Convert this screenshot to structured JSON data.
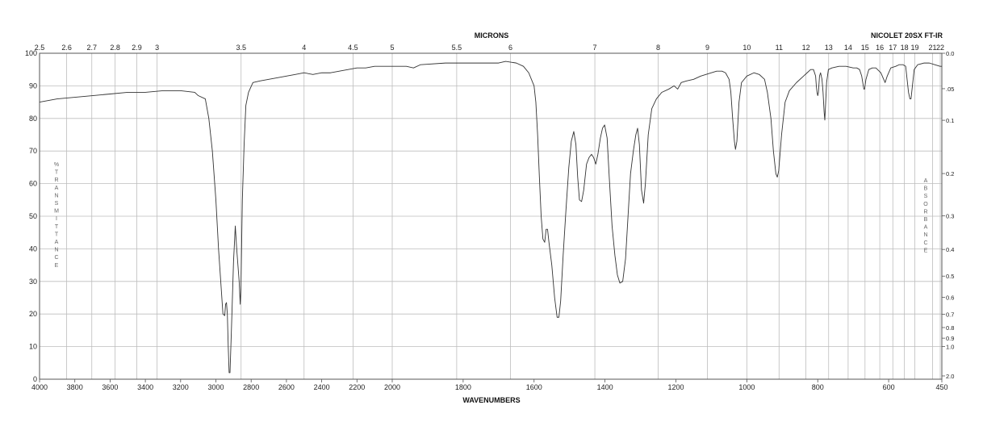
{
  "chart_data": {
    "type": "line",
    "top_axis_title": "MICRONS",
    "bottom_axis_title": "WAVENUMBERS",
    "instrument": "NICOLET 20SX FT-IR",
    "left_axis_title": "% TRANSMITTANCE",
    "left_axis_letters": [
      "%",
      "T",
      "R",
      "A",
      "N",
      "S",
      "M",
      "I",
      "T",
      "T",
      "A",
      "N",
      "C",
      "E"
    ],
    "right_axis_title": "ABSORBANCE",
    "right_axis_letters": [
      "A",
      "B",
      "S",
      "O",
      "R",
      "B",
      "A",
      "N",
      "C",
      "E"
    ],
    "x_range": [
      4000,
      450
    ],
    "y_range": [
      0,
      100
    ],
    "grid": true,
    "bottom_ticks": [
      {
        "v": 4000,
        "label": "4000"
      },
      {
        "v": 3800,
        "label": "3800"
      },
      {
        "v": 3600,
        "label": "3600"
      },
      {
        "v": 3400,
        "label": "3400"
      },
      {
        "v": 3200,
        "label": "3200"
      },
      {
        "v": 3000,
        "label": "3000"
      },
      {
        "v": 2800,
        "label": "2800"
      },
      {
        "v": 2600,
        "label": "2600"
      },
      {
        "v": 2400,
        "label": "2400"
      },
      {
        "v": 2200,
        "label": "2200"
      },
      {
        "v": 2000,
        "label": "2000"
      },
      {
        "v": 1800,
        "label": "1800"
      },
      {
        "v": 1600,
        "label": "1600"
      },
      {
        "v": 1400,
        "label": "1400"
      },
      {
        "v": 1200,
        "label": "1200"
      },
      {
        "v": 1000,
        "label": "1000"
      },
      {
        "v": 800,
        "label": "800"
      },
      {
        "v": 600,
        "label": "600"
      },
      {
        "v": 450,
        "label": "450"
      }
    ],
    "top_ticks": [
      {
        "v": 2.5,
        "label": "2.5"
      },
      {
        "v": 2.6,
        "label": "2.6"
      },
      {
        "v": 2.7,
        "label": "2.7"
      },
      {
        "v": 2.8,
        "label": "2.8"
      },
      {
        "v": 2.9,
        "label": "2.9"
      },
      {
        "v": 3,
        "label": "3"
      },
      {
        "v": 3.5,
        "label": "3.5"
      },
      {
        "v": 4,
        "label": "4"
      },
      {
        "v": 4.5,
        "label": "4.5"
      },
      {
        "v": 5,
        "label": "5"
      },
      {
        "v": 5.5,
        "label": "5.5"
      },
      {
        "v": 6,
        "label": "6"
      },
      {
        "v": 7,
        "label": "7"
      },
      {
        "v": 8,
        "label": "8"
      },
      {
        "v": 9,
        "label": "9"
      },
      {
        "v": 10,
        "label": "10"
      },
      {
        "v": 11,
        "label": "11"
      },
      {
        "v": 12,
        "label": "12"
      },
      {
        "v": 13,
        "label": "13"
      },
      {
        "v": 14,
        "label": "14"
      },
      {
        "v": 15,
        "label": "15"
      },
      {
        "v": 16,
        "label": "16"
      },
      {
        "v": 17,
        "label": "17"
      },
      {
        "v": 18,
        "label": "18"
      },
      {
        "v": 19,
        "label": "19"
      },
      {
        "v": 21,
        "label": "21"
      },
      {
        "v": 22,
        "label": "22"
      }
    ],
    "left_ticks": [
      {
        "v": 0,
        "label": "0"
      },
      {
        "v": 10,
        "label": "10"
      },
      {
        "v": 20,
        "label": "20"
      },
      {
        "v": 30,
        "label": "30"
      },
      {
        "v": 40,
        "label": "40"
      },
      {
        "v": 50,
        "label": "50"
      },
      {
        "v": 60,
        "label": "60"
      },
      {
        "v": 70,
        "label": "70"
      },
      {
        "v": 80,
        "label": "80"
      },
      {
        "v": 90,
        "label": "90"
      },
      {
        "v": 100,
        "label": "100"
      }
    ],
    "right_ticks": [
      {
        "v": 0.0,
        "label": "0.0"
      },
      {
        "v": 0.05,
        "label": ".05"
      },
      {
        "v": 0.1,
        "label": "0.1"
      },
      {
        "v": 0.2,
        "label": "0.2"
      },
      {
        "v": 0.3,
        "label": "0.3"
      },
      {
        "v": 0.4,
        "label": "0.4"
      },
      {
        "v": 0.5,
        "label": "0.5"
      },
      {
        "v": 0.6,
        "label": "0.6"
      },
      {
        "v": 0.7,
        "label": "0.7"
      },
      {
        "v": 0.8,
        "label": "0.8"
      },
      {
        "v": 0.9,
        "label": "0.9"
      },
      {
        "v": 1.0,
        "label": "1.0"
      },
      {
        "v": 2.0,
        "label": "2.0"
      }
    ],
    "series": [
      {
        "line_color": "#333333",
        "points": [
          [
            4000,
            85
          ],
          [
            3900,
            86
          ],
          [
            3800,
            86.5
          ],
          [
            3700,
            87
          ],
          [
            3600,
            87.5
          ],
          [
            3500,
            88
          ],
          [
            3400,
            88
          ],
          [
            3300,
            88.5
          ],
          [
            3200,
            88.5
          ],
          [
            3120,
            88
          ],
          [
            3100,
            87
          ],
          [
            3060,
            86
          ],
          [
            3040,
            80
          ],
          [
            3020,
            70
          ],
          [
            3000,
            55
          ],
          [
            2985,
            40
          ],
          [
            2970,
            28
          ],
          [
            2960,
            20
          ],
          [
            2950,
            19.5
          ],
          [
            2945,
            23
          ],
          [
            2940,
            23.5
          ],
          [
            2935,
            20
          ],
          [
            2930,
            10
          ],
          [
            2925,
            2
          ],
          [
            2920,
            2
          ],
          [
            2912,
            15
          ],
          [
            2900,
            36
          ],
          [
            2890,
            47
          ],
          [
            2882,
            40
          ],
          [
            2875,
            35
          ],
          [
            2868,
            30
          ],
          [
            2862,
            23
          ],
          [
            2858,
            28
          ],
          [
            2850,
            55
          ],
          [
            2840,
            72
          ],
          [
            2830,
            84
          ],
          [
            2815,
            88
          ],
          [
            2790,
            91
          ],
          [
            2750,
            91.5
          ],
          [
            2700,
            92
          ],
          [
            2650,
            92.5
          ],
          [
            2600,
            93
          ],
          [
            2550,
            93.5
          ],
          [
            2500,
            94
          ],
          [
            2450,
            93.5
          ],
          [
            2400,
            94
          ],
          [
            2350,
            94
          ],
          [
            2300,
            94.5
          ],
          [
            2250,
            95
          ],
          [
            2200,
            95.5
          ],
          [
            2150,
            95.5
          ],
          [
            2100,
            96
          ],
          [
            2050,
            96
          ],
          [
            2000,
            96
          ],
          [
            1960,
            96
          ],
          [
            1940,
            95.5
          ],
          [
            1920,
            96.5
          ],
          [
            1850,
            97
          ],
          [
            1800,
            97
          ],
          [
            1750,
            97
          ],
          [
            1700,
            97
          ],
          [
            1680,
            97.5
          ],
          [
            1650,
            97
          ],
          [
            1630,
            96
          ],
          [
            1615,
            94
          ],
          [
            1600,
            90
          ],
          [
            1595,
            85
          ],
          [
            1590,
            75
          ],
          [
            1585,
            62
          ],
          [
            1580,
            50
          ],
          [
            1575,
            43
          ],
          [
            1570,
            42
          ],
          [
            1566,
            46
          ],
          [
            1562,
            46
          ],
          [
            1558,
            42
          ],
          [
            1550,
            35
          ],
          [
            1542,
            25
          ],
          [
            1535,
            19
          ],
          [
            1530,
            19
          ],
          [
            1525,
            24
          ],
          [
            1518,
            38
          ],
          [
            1510,
            52
          ],
          [
            1502,
            65
          ],
          [
            1495,
            73
          ],
          [
            1488,
            76
          ],
          [
            1482,
            72
          ],
          [
            1477,
            62
          ],
          [
            1472,
            55
          ],
          [
            1466,
            54.5
          ],
          [
            1460,
            58
          ],
          [
            1452,
            66
          ],
          [
            1445,
            68
          ],
          [
            1438,
            69
          ],
          [
            1432,
            68
          ],
          [
            1426,
            66
          ],
          [
            1420,
            69
          ],
          [
            1413,
            74
          ],
          [
            1407,
            77
          ],
          [
            1401,
            78
          ],
          [
            1394,
            74
          ],
          [
            1388,
            62
          ],
          [
            1380,
            47
          ],
          [
            1372,
            38
          ],
          [
            1365,
            32
          ],
          [
            1358,
            29.5
          ],
          [
            1350,
            30
          ],
          [
            1342,
            37
          ],
          [
            1335,
            50
          ],
          [
            1328,
            63
          ],
          [
            1320,
            70
          ],
          [
            1313,
            75
          ],
          [
            1308,
            77
          ],
          [
            1303,
            72
          ],
          [
            1297,
            58
          ],
          [
            1291,
            54
          ],
          [
            1286,
            60
          ],
          [
            1278,
            75
          ],
          [
            1268,
            83
          ],
          [
            1255,
            86
          ],
          [
            1240,
            88
          ],
          [
            1220,
            89
          ],
          [
            1205,
            90
          ],
          [
            1195,
            89
          ],
          [
            1185,
            91
          ],
          [
            1170,
            91.5
          ],
          [
            1150,
            92
          ],
          [
            1130,
            93
          ],
          [
            1100,
            94
          ],
          [
            1085,
            94.5
          ],
          [
            1070,
            94.5
          ],
          [
            1060,
            94
          ],
          [
            1050,
            92
          ],
          [
            1045,
            88
          ],
          [
            1040,
            80
          ],
          [
            1035,
            73
          ],
          [
            1032,
            70.5
          ],
          [
            1028,
            73
          ],
          [
            1022,
            85
          ],
          [
            1015,
            91
          ],
          [
            1000,
            93
          ],
          [
            980,
            94
          ],
          [
            965,
            93.5
          ],
          [
            950,
            92
          ],
          [
            942,
            88
          ],
          [
            932,
            80
          ],
          [
            925,
            70
          ],
          [
            918,
            63
          ],
          [
            914,
            62
          ],
          [
            910,
            64
          ],
          [
            902,
            75
          ],
          [
            892,
            85
          ],
          [
            880,
            88.5
          ],
          [
            860,
            91
          ],
          [
            840,
            93
          ],
          [
            830,
            94
          ],
          [
            820,
            95
          ],
          [
            812,
            95
          ],
          [
            806,
            93
          ],
          [
            804,
            90
          ],
          [
            802,
            88
          ],
          [
            800,
            87
          ],
          [
            798,
            88
          ],
          [
            795,
            93
          ],
          [
            792,
            94
          ],
          [
            788,
            92
          ],
          [
            785,
            88
          ],
          [
            782,
            82
          ],
          [
            780,
            79.5
          ],
          [
            778,
            84
          ],
          [
            775,
            91
          ],
          [
            770,
            95
          ],
          [
            760,
            95.5
          ],
          [
            740,
            96
          ],
          [
            720,
            96
          ],
          [
            700,
            95.5
          ],
          [
            690,
            95.5
          ],
          [
            682,
            95
          ],
          [
            676,
            93
          ],
          [
            670,
            89
          ],
          [
            668,
            89
          ],
          [
            664,
            92
          ],
          [
            656,
            95
          ],
          [
            646,
            95.5
          ],
          [
            636,
            95.5
          ],
          [
            622,
            94
          ],
          [
            614,
            92
          ],
          [
            610,
            91
          ],
          [
            604,
            93
          ],
          [
            594,
            95.5
          ],
          [
            580,
            96
          ],
          [
            570,
            96.5
          ],
          [
            560,
            96.5
          ],
          [
            552,
            96
          ],
          [
            548,
            92
          ],
          [
            544,
            88
          ],
          [
            540,
            86
          ],
          [
            537,
            86
          ],
          [
            533,
            90
          ],
          [
            528,
            95
          ],
          [
            518,
            96.5
          ],
          [
            500,
            97
          ],
          [
            485,
            97
          ],
          [
            470,
            96.5
          ],
          [
            455,
            96
          ],
          [
            450,
            96
          ]
        ]
      }
    ]
  }
}
